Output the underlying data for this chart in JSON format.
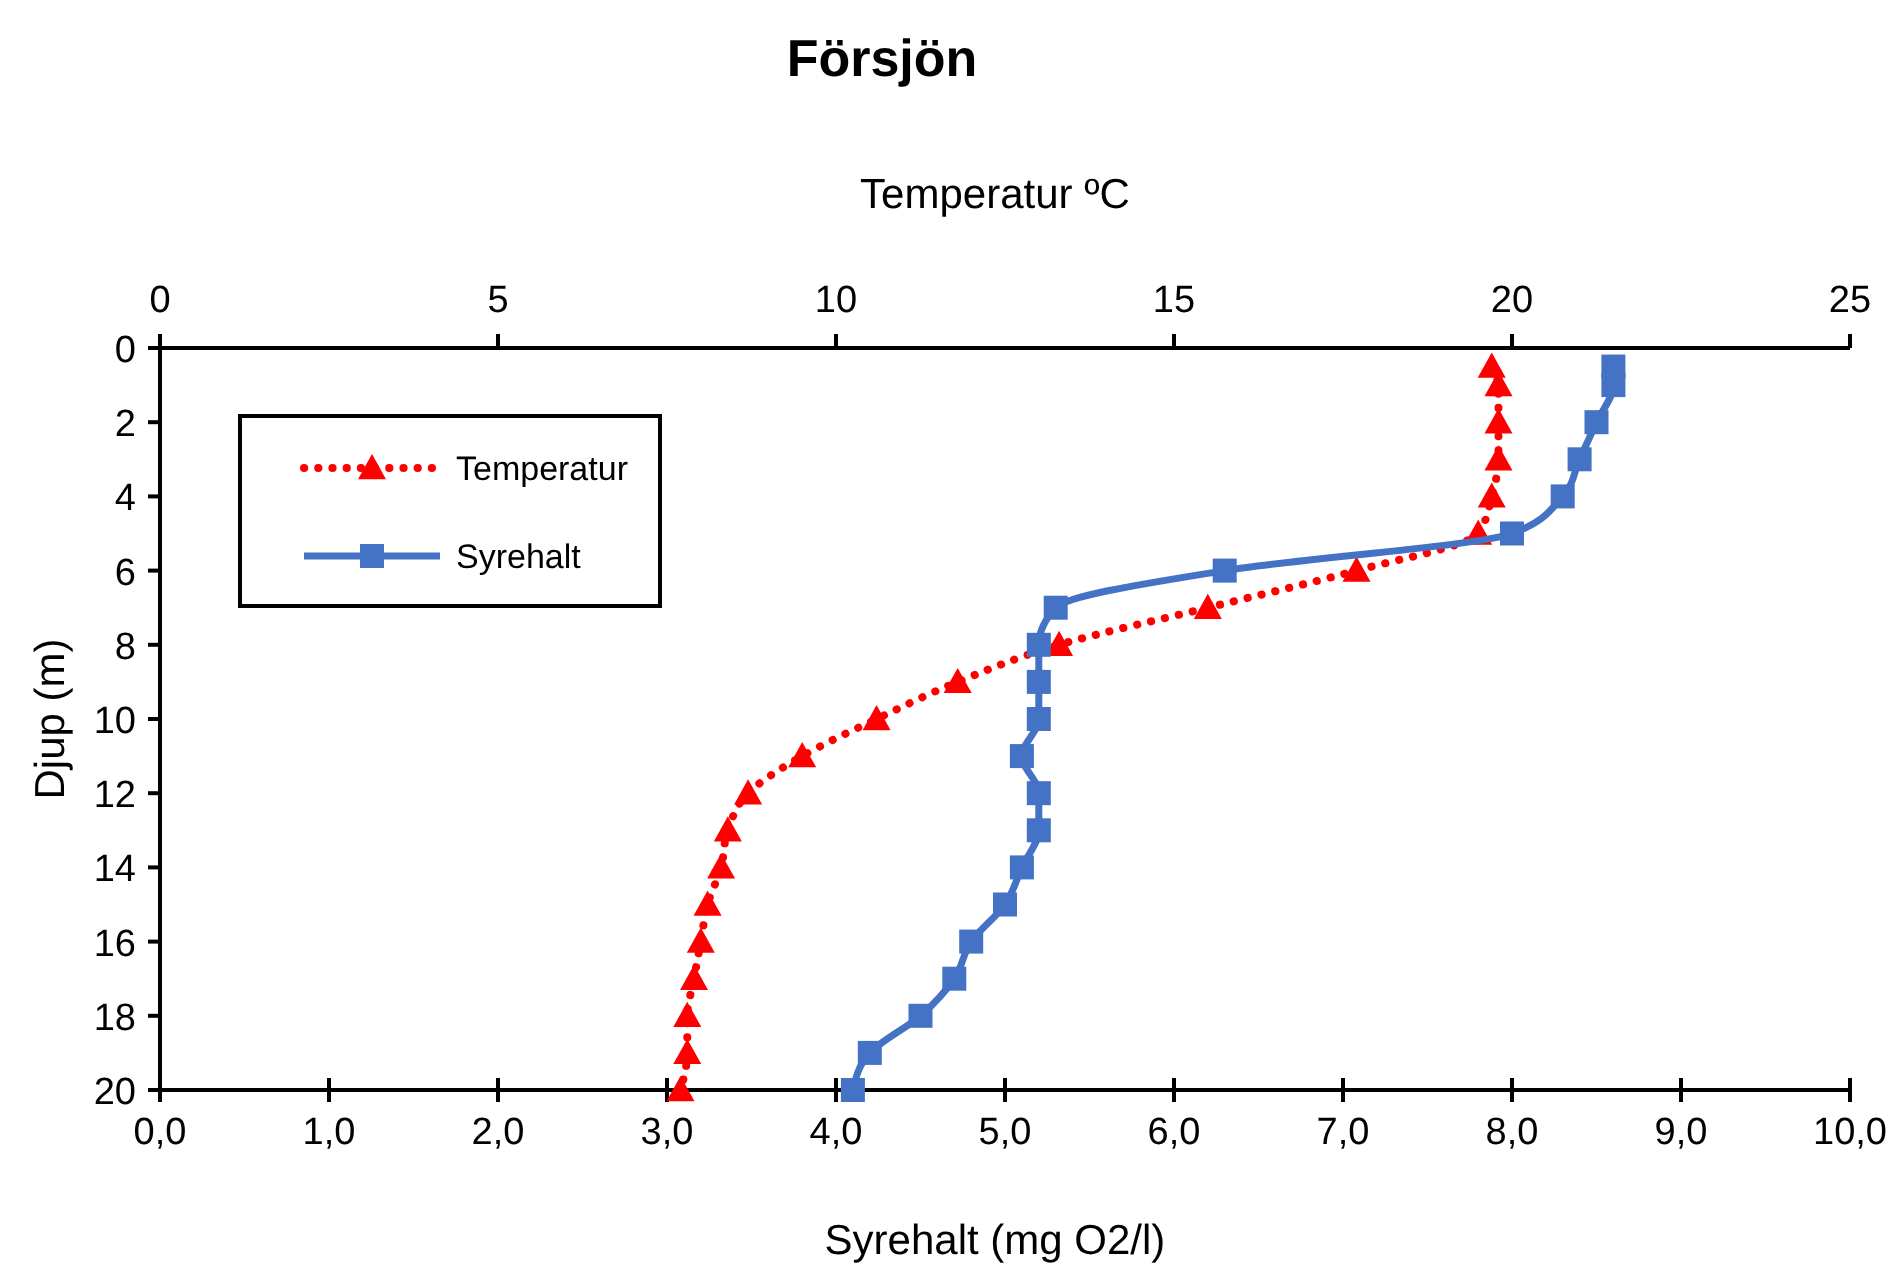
{
  "chart_data": {
    "type": "line",
    "title": "Försjön",
    "xlabel": "Syrehalt  (mg O2/l)",
    "x2label": "Temperatur  ºC",
    "ylabel": "Djup (m)",
    "xlim": [
      0,
      10
    ],
    "xticks": [
      {
        "value": 0,
        "label": "0,0"
      },
      {
        "value": 1,
        "label": "1,0"
      },
      {
        "value": 2,
        "label": "2,0"
      },
      {
        "value": 3,
        "label": "3,0"
      },
      {
        "value": 4,
        "label": "4,0"
      },
      {
        "value": 5,
        "label": "5,0"
      },
      {
        "value": 6,
        "label": "6,0"
      },
      {
        "value": 7,
        "label": "7,0"
      },
      {
        "value": 8,
        "label": "8,0"
      },
      {
        "value": 9,
        "label": "9,0"
      },
      {
        "value": 10,
        "label": "10,0"
      }
    ],
    "x2lim": [
      0,
      25
    ],
    "x2ticks": [
      0,
      5,
      10,
      15,
      20,
      25
    ],
    "ylim": [
      20,
      0
    ],
    "yticks": [
      0,
      2,
      4,
      6,
      8,
      10,
      12,
      14,
      16,
      18,
      20
    ],
    "grid": false,
    "legend": "top left",
    "series": [
      {
        "name": "Temperatur",
        "color": "#ff0000",
        "axis": "x2",
        "marker": "triangle",
        "line_style": "dotted",
        "x": [
          19.7,
          19.8,
          19.8,
          19.8,
          19.7,
          19.5,
          17.7,
          15.5,
          13.3,
          11.8,
          10.6,
          9.5,
          8.7,
          8.4,
          8.3,
          8.1,
          8.0,
          7.9,
          7.8,
          7.8,
          7.7
        ],
        "values": [
          0.5,
          1,
          2,
          3,
          4,
          5,
          6,
          7,
          8,
          9,
          10,
          11,
          12,
          13,
          14,
          15,
          16,
          17,
          18,
          19,
          20
        ]
      },
      {
        "name": "Syrehalt",
        "color": "#4472c4",
        "marker": "square",
        "line_style": "solid",
        "x": [
          8.6,
          8.6,
          8.5,
          8.4,
          8.3,
          8.0,
          6.3,
          5.3,
          5.2,
          5.2,
          5.2,
          5.1,
          5.2,
          5.2,
          5.1,
          5.0,
          4.8,
          4.7,
          4.5,
          4.2,
          4.1
        ],
        "values": [
          0.5,
          1,
          2,
          3,
          4,
          5,
          6,
          7,
          8,
          9,
          10,
          11,
          12,
          13,
          14,
          15,
          16,
          17,
          18,
          19,
          20
        ]
      }
    ]
  }
}
